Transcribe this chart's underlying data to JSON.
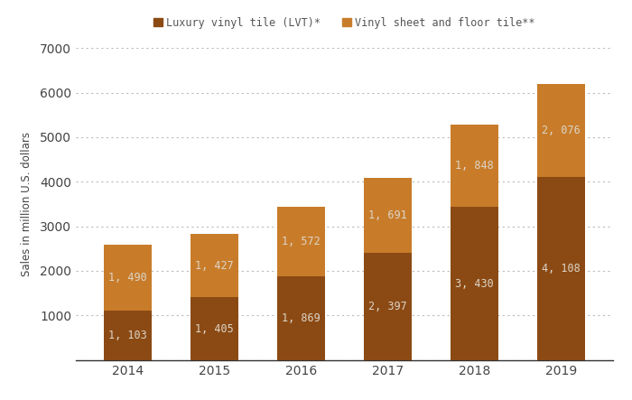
{
  "years": [
    "2014",
    "2015",
    "2016",
    "2017",
    "2018",
    "2019"
  ],
  "lvt_values": [
    1103,
    1405,
    1869,
    2397,
    3430,
    4108
  ],
  "vinyl_values": [
    1490,
    1427,
    1572,
    1691,
    1848,
    2076
  ],
  "lvt_color": "#8B4A14",
  "vinyl_color": "#C87C2A",
  "ylabel": "Sales in million U.S. dollars",
  "ylim": [
    0,
    7000
  ],
  "yticks": [
    0,
    1000,
    2000,
    3000,
    4000,
    5000,
    6000,
    7000
  ],
  "legend_lvt": "Luxury vinyl tile (LVT)*",
  "legend_vinyl": "Vinyl sheet and floor tile**",
  "background_color": "#ffffff",
  "grid_color": "#bbbbbb",
  "bar_width": 0.55,
  "label_color": "#ddd5c8",
  "label_fontsize": 8.5
}
